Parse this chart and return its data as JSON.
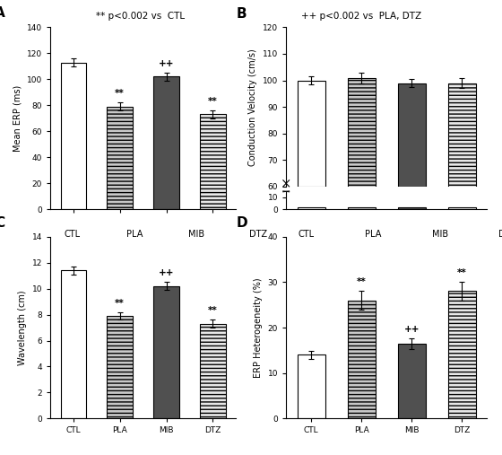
{
  "title_left": "** p<0.002 vs  CTL",
  "title_right": "++ p<0.002 vs  PLA, DTZ",
  "groups": [
    "CTL",
    "PLA",
    "MIB",
    "DTZ"
  ],
  "panel_A": {
    "label": "A",
    "ylabel": "Mean ERP (ms)",
    "ylim": [
      0,
      140
    ],
    "yticks": [
      0,
      20,
      40,
      60,
      80,
      100,
      120,
      140
    ],
    "values": [
      113,
      79,
      102,
      73
    ],
    "errors": [
      3,
      3,
      3,
      3
    ],
    "annotations": [
      "",
      "**",
      "++",
      "**"
    ]
  },
  "panel_B": {
    "label": "B",
    "ylabel": "Conduction Velocity (cm/s)",
    "ylim_main": [
      60,
      120
    ],
    "ylim_stub": [
      0,
      15
    ],
    "yticks_main": [
      60,
      70,
      80,
      90,
      100,
      110,
      120
    ],
    "yticks_stub": [
      0,
      10
    ],
    "values": [
      100,
      101,
      99,
      99
    ],
    "errors": [
      1.5,
      2,
      1.5,
      2
    ],
    "annotations": [
      "",
      "",
      "",
      ""
    ]
  },
  "panel_C": {
    "label": "C",
    "ylabel": "Wavelength (cm)",
    "ylim": [
      0,
      14
    ],
    "yticks": [
      0,
      2,
      4,
      6,
      8,
      10,
      12,
      14
    ],
    "values": [
      11.4,
      7.9,
      10.2,
      7.3
    ],
    "errors": [
      0.3,
      0.3,
      0.3,
      0.3
    ],
    "annotations": [
      "",
      "**",
      "++",
      "**"
    ]
  },
  "panel_D": {
    "label": "D",
    "ylabel": "ERP Heterogeneity (%)",
    "ylim": [
      0,
      40
    ],
    "yticks": [
      0,
      10,
      20,
      30,
      40
    ],
    "values": [
      14,
      26,
      16.5,
      28
    ],
    "errors": [
      0.8,
      2,
      1.2,
      2
    ],
    "annotations": [
      "",
      "**",
      "++",
      "**"
    ]
  },
  "bar_styles": {
    "CTL": {
      "facecolor": "white",
      "hatch": "",
      "linewidth": 0.8
    },
    "PLA": {
      "facecolor": "#c8c8c8",
      "hatch": "----",
      "linewidth": 0.8
    },
    "MIB": {
      "facecolor": "#505050",
      "hatch": "====",
      "linewidth": 0.8
    },
    "DTZ": {
      "facecolor": "#e8e8e8",
      "hatch": "----",
      "linewidth": 0.8
    }
  }
}
